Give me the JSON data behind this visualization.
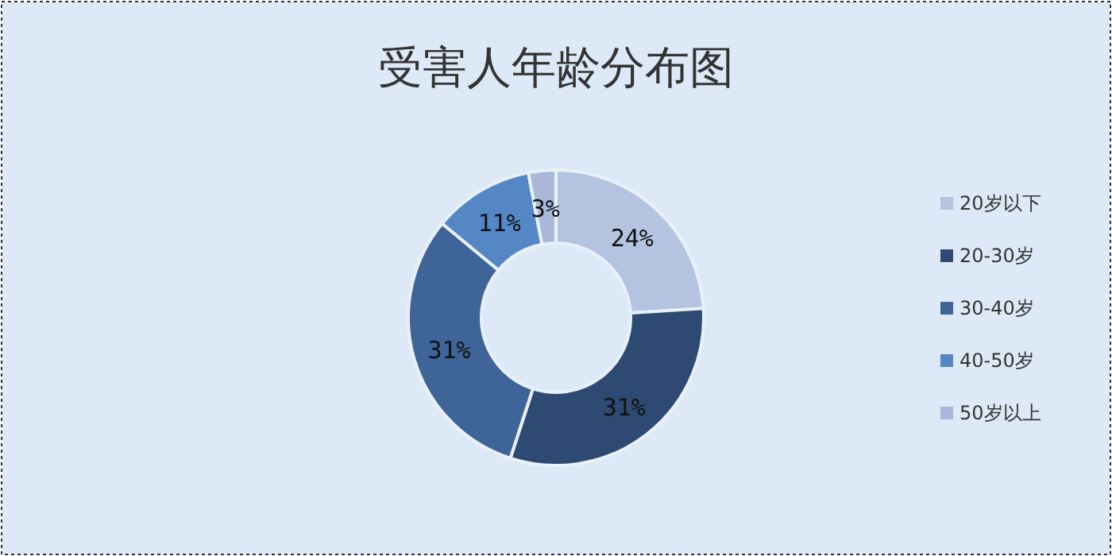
{
  "chart_data": {
    "type": "donut",
    "title": "受害人年龄分布图",
    "categories": [
      "20岁以下",
      "20-30岁",
      "30-40岁",
      "40-50岁",
      "50岁以上"
    ],
    "values": [
      24,
      31,
      31,
      11,
      3
    ],
    "colors": [
      "#b4c3e0",
      "#2e4a72",
      "#3e6498",
      "#5587c6",
      "#a9b8d8"
    ],
    "value_labels": [
      "24%",
      "31%",
      "31%",
      "11%",
      "3%"
    ],
    "legend": "right"
  }
}
